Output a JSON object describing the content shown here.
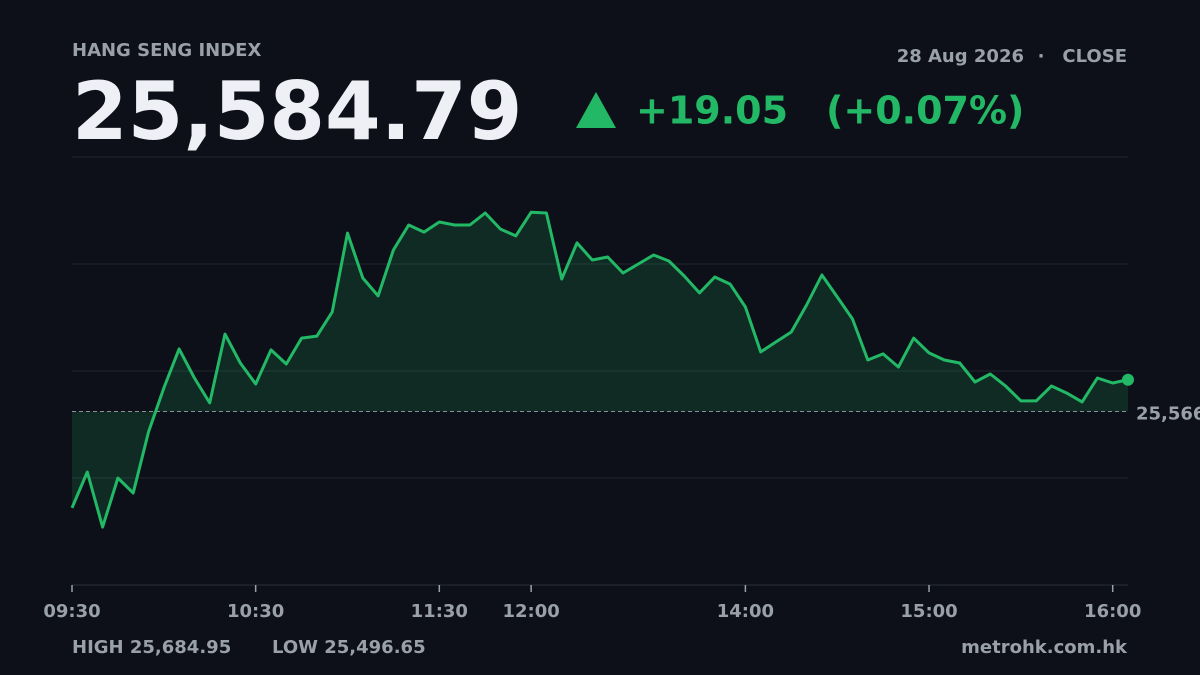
{
  "chart_data": {
    "type": "line",
    "title": "HANG SENG INDEX",
    "date": "28 Aug 2026",
    "session": "CLOSE",
    "price_label": "25,584.79",
    "change_label": "+19.05",
    "change_pct_label": "(+0.07%)",
    "high_label": "HIGH 25,684.95",
    "low_label": "LOW 25,496.65",
    "source": "metrohk.com.hk",
    "color": "#22b866",
    "previous_close": {
      "value": 25565.74,
      "label": "25,566"
    },
    "categories": [
      "09:30",
      null,
      null,
      null,
      null,
      null,
      null,
      null,
      null,
      null,
      null,
      null,
      "10:30",
      null,
      null,
      null,
      null,
      null,
      null,
      null,
      null,
      null,
      null,
      null,
      "11:30",
      null,
      null,
      null,
      null,
      null,
      "12:00",
      null,
      null,
      null,
      null,
      null,
      null,
      null,
      null,
      null,
      null,
      null,
      null,
      null,
      "14:00",
      null,
      null,
      null,
      null,
      null,
      null,
      null,
      null,
      null,
      null,
      null,
      "15:00",
      null,
      null,
      null,
      null,
      null,
      null,
      null,
      null,
      null,
      null,
      null,
      "16:00",
      null
    ],
    "values": [
      25508.1,
      25529.6,
      25496.65,
      25526.0,
      25517.0,
      25553.5,
      25579.8,
      25603.2,
      25585.8,
      25570.9,
      25612.1,
      25594.8,
      25582.2,
      25602.6,
      25594.2,
      25609.7,
      25610.9,
      25625.3,
      25672.5,
      25645.6,
      25634.9,
      25662.4,
      25677.3,
      25673.1,
      25679.1,
      25677.3,
      25677.3,
      25684.5,
      25674.9,
      25670.8,
      25684.95,
      25684.5,
      25645.0,
      25666.6,
      25656.4,
      25658.2,
      25648.6,
      25654.0,
      25659.4,
      25655.8,
      25646.8,
      25636.7,
      25646.2,
      25642.0,
      25628.3,
      25601.4,
      25607.4,
      25613.3,
      25629.5,
      25647.4,
      25634.3,
      25621.1,
      25596.6,
      25600.2,
      25592.4,
      25609.7,
      25600.8,
      25596.6,
      25594.8,
      25583.4,
      25588.2,
      25581.0,
      25572.1,
      25572.1,
      25581.0,
      25576.8,
      25571.5,
      25585.8,
      25582.8,
      25584.79
    ],
    "ylim": [
      25462,
      25718
    ],
    "yticks": [
      25462,
      25526,
      25590,
      25654,
      25718
    ],
    "grid": true
  }
}
